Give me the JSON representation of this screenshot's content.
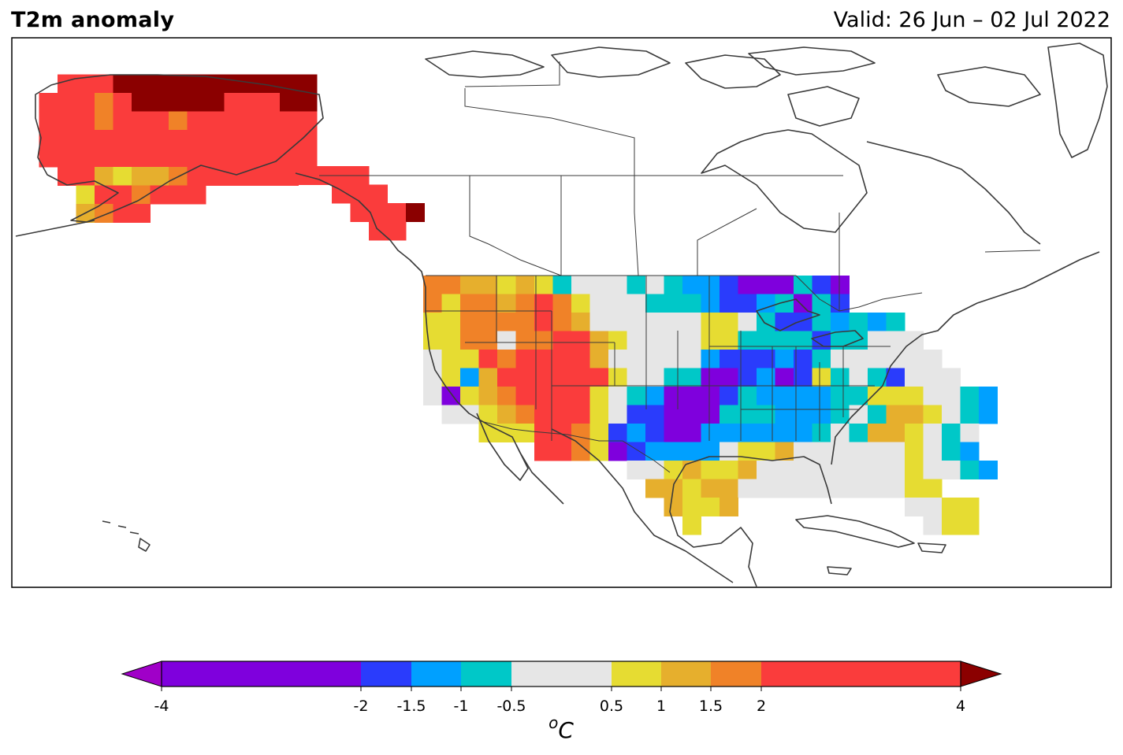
{
  "title": "T2m anomaly",
  "valid": "Valid: 26 Jun – 02 Jul 2022",
  "colorbar": {
    "unit_sup": "o",
    "unit_main": "C",
    "ticks": [
      "-4",
      "-2",
      "-1.5",
      "-1",
      "-0.5",
      "0.5",
      "1",
      "1.5",
      "2",
      "4"
    ],
    "tick_values": [
      -4,
      -2,
      -1.5,
      -1,
      -0.5,
      0.5,
      1,
      1.5,
      2,
      4
    ],
    "bins": [
      {
        "from": -4,
        "to": -2,
        "color": "#7f00dd"
      },
      {
        "from": -2,
        "to": -1.5,
        "color": "#2a3cfc"
      },
      {
        "from": -1.5,
        "to": -1,
        "color": "#00a0ff"
      },
      {
        "from": -1,
        "to": -0.5,
        "color": "#00c8c8"
      },
      {
        "from": -0.5,
        "to": 0.5,
        "color": "#e6e6e6"
      },
      {
        "from": 0.5,
        "to": 1,
        "color": "#e6dc32"
      },
      {
        "from": 1,
        "to": 1.5,
        "color": "#e6af2d"
      },
      {
        "from": 1.5,
        "to": 2,
        "color": "#f08228"
      },
      {
        "from": 2,
        "to": 4,
        "color": "#fa3c3c"
      }
    ],
    "under_color": "#a000c8",
    "over_color": "#8b0000"
  },
  "palette": {
    "P": "#7f00dd",
    "B": "#2a3cfc",
    "L": "#00a0ff",
    "T": "#00c8c8",
    "G": "#e6e6e6",
    "Y": "#e6dc32",
    "A": "#e6af2d",
    "O": "#f08228",
    "R": "#fa3c3c",
    "D": "#8b0000"
  },
  "chart_data": {
    "type": "heatmap",
    "grid": {
      "ak": [
        "..........",
        "..RRRDDDDDDDDDDD",
        ".RRRORDDDDDRRRDD",
        ".RRRORRRORRRRRRR",
        ".RRRRRRRRRRRRRRR",
        ".RRRRRRRRRRRRRRR",
        "..RRAYAAORRRRRR",
        "...YRRORRR",
        "...AORR"
      ],
      "se_ak": [
        "RRRR",
        "..RRR",
        "...RRRD",
        "....RR"
      ],
      "conus": [
        "OOAAYAYTGGGTGTLLBPPPTBP",
        "OYOOAOROYGGGTTTLBBLTPTB",
        "YYOOOOROAGGGGGGYYGTBBTLTLT",
        "YYOOGOORRAYGGGGYYTTTTBTTGGG",
        "GYYRORRRRAGGGGGLBBBLBTGGGGGG",
        "GYLARRRRRRYGGTTPPBLPBYTGTBGGG",
        "GPYAORRRRYGTLPPPBTLLLLTTYYYGGTL",
        ".GGYAORRRYGBBPPPTTTLLLTGTAAYGTL",
        "...YYYRROYBLBPPLLLLLLTGTAAYGTG",
        "......RROYPBLLLLGYYAGGGGGGYGTL",
        "...........GGYAYYAGGGGGGGGYGGTL",
        "............AAYAAGGGGGGGGGYY",
        ".............AYYA.........GGYY",
        "..............Y............GYY"
      ]
    }
  }
}
